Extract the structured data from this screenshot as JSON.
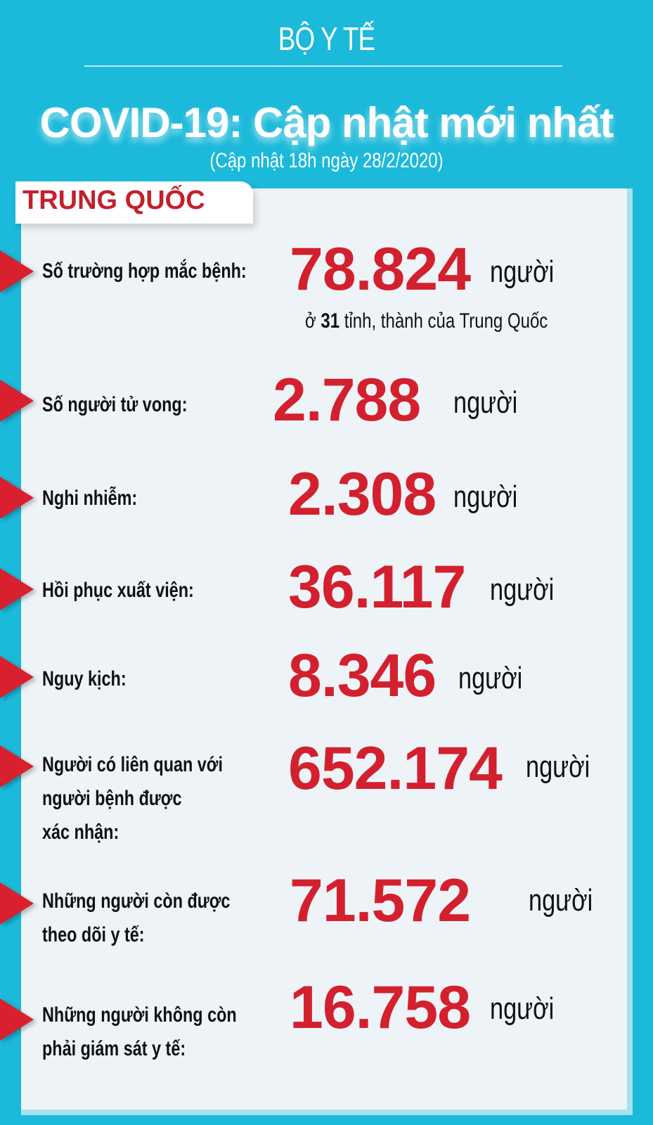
{
  "header": {
    "org": "BỘ Y TẾ",
    "title": "COVID-19: Cập nhật mới nhất",
    "subtitle": "(Cập nhật 18h ngày 28/2/2020)"
  },
  "country": "TRUNG QUỐC",
  "colors": {
    "background": "#1bb9da",
    "number": "#d3202e",
    "arrow": "#d8202e",
    "panel": "#eef3f7"
  },
  "stats": [
    {
      "label": "Số trường hợp mắc bệnh:",
      "value": "78.824",
      "unit": "người",
      "note_pre": "ở ",
      "note_num": "31",
      "note_post": " tỉnh, thành của Trung Quốc"
    },
    {
      "label": "Số người tử vong:",
      "value": "2.788",
      "unit": "người"
    },
    {
      "label": "Nghi nhiễm:",
      "value": "2.308",
      "unit": "người"
    },
    {
      "label": "Hồi phục xuất viện:",
      "value": "36.117",
      "unit": "người"
    },
    {
      "label": "Nguy kịch:",
      "value": "8.346",
      "unit": "người"
    },
    {
      "label_lines": [
        "Người có liên quan với",
        "người bệnh được",
        "xác nhận:"
      ],
      "value": "652.174",
      "unit": "người"
    },
    {
      "label_lines": [
        "Những người còn được",
        "theo dõi y tế:"
      ],
      "value": "71.572",
      "unit": "người"
    },
    {
      "label_lines": [
        "Những người không còn",
        "phải giám sát y tế:"
      ],
      "value": "16.758",
      "unit": "người"
    }
  ]
}
